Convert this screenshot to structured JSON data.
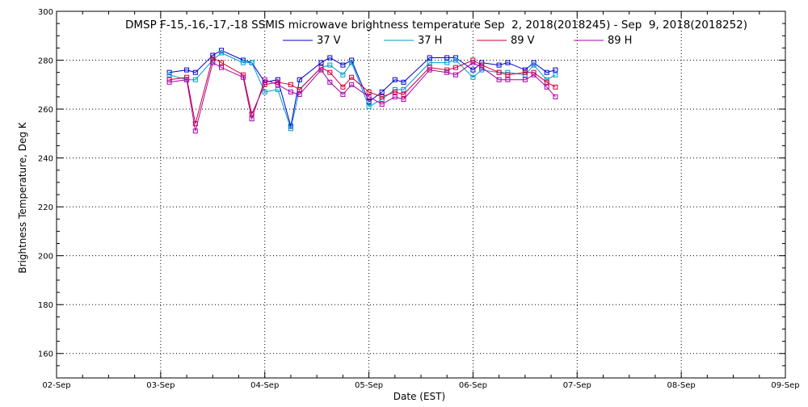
{
  "chart_data": {
    "type": "line",
    "title": "DMSP F-15,-16,-17,-18 SSMIS microwave brightness temperature Sep  2, 2018(2018245) - Sep  9, 2018(2018252)",
    "xlabel": "Date (EST)",
    "ylabel": "Brightness Temperature, Deg K",
    "xlim": [
      "2018-09-02",
      "2018-09-09"
    ],
    "ylim": [
      150,
      300
    ],
    "x_ticks": [
      "02-Sep",
      "03-Sep",
      "04-Sep",
      "05-Sep",
      "06-Sep",
      "07-Sep",
      "08-Sep",
      "09-Sep"
    ],
    "y_ticks": [
      160,
      180,
      200,
      220,
      240,
      260,
      280,
      300
    ],
    "grid": true,
    "legend_position": "top-center",
    "series": [
      {
        "name": "37 V",
        "color": "#0000cc",
        "x": [
          "2018-09-03 02:00",
          "2018-09-03 06:00",
          "2018-09-03 08:00",
          "2018-09-03 12:00",
          "2018-09-03 14:00",
          "2018-09-03 19:00",
          "2018-09-03 21:00",
          "2018-09-04 00:00",
          "2018-09-04 03:00",
          "2018-09-04 06:00",
          "2018-09-04 08:00",
          "2018-09-04 13:00",
          "2018-09-04 15:00",
          "2018-09-04 18:00",
          "2018-09-04 20:00",
          "2018-09-05 00:00",
          "2018-09-05 03:00",
          "2018-09-05 06:00",
          "2018-09-05 08:00",
          "2018-09-05 14:00",
          "2018-09-05 18:00",
          "2018-09-05 20:00",
          "2018-09-06 00:00",
          "2018-09-06 02:00",
          "2018-09-06 06:00",
          "2018-09-06 08:00",
          "2018-09-06 12:00",
          "2018-09-06 14:00",
          "2018-09-06 17:00",
          "2018-09-06 19:00"
        ],
        "values": [
          275,
          276,
          275,
          282,
          284,
          280,
          279,
          271,
          272,
          253,
          272,
          279,
          281,
          278,
          280,
          263,
          267,
          272,
          271,
          281,
          281,
          281,
          276,
          279,
          278,
          279,
          276,
          279,
          275,
          276
        ]
      },
      {
        "name": "37 H",
        "color": "#0099cc",
        "x": [
          "2018-09-03 02:00",
          "2018-09-03 06:00",
          "2018-09-03 08:00",
          "2018-09-03 12:00",
          "2018-09-03 14:00",
          "2018-09-03 19:00",
          "2018-09-03 21:00",
          "2018-09-04 00:00",
          "2018-09-04 03:00",
          "2018-09-04 06:00",
          "2018-09-04 08:00",
          "2018-09-04 13:00",
          "2018-09-04 15:00",
          "2018-09-04 18:00",
          "2018-09-04 20:00",
          "2018-09-05 00:00",
          "2018-09-05 03:00",
          "2018-09-05 06:00",
          "2018-09-05 08:00",
          "2018-09-05 14:00",
          "2018-09-05 18:00",
          "2018-09-05 20:00",
          "2018-09-06 00:00",
          "2018-09-06 02:00",
          "2018-09-06 06:00",
          "2018-09-06 08:00",
          "2018-09-06 12:00",
          "2018-09-06 14:00",
          "2018-09-06 17:00",
          "2018-09-06 19:00"
        ],
        "values": [
          274,
          272,
          272,
          280,
          283,
          279,
          279,
          267,
          268,
          252,
          268,
          277,
          278,
          274,
          279,
          261,
          264,
          268,
          268,
          279,
          279,
          280,
          273,
          276,
          275,
          275,
          274,
          278,
          272,
          274
        ]
      },
      {
        "name": "89 V",
        "color": "#cc0033",
        "x": [
          "2018-09-03 02:00",
          "2018-09-03 06:00",
          "2018-09-03 08:00",
          "2018-09-03 12:00",
          "2018-09-03 14:00",
          "2018-09-03 19:00",
          "2018-09-03 21:00",
          "2018-09-04 00:00",
          "2018-09-04 03:00",
          "2018-09-04 06:00",
          "2018-09-04 08:00",
          "2018-09-04 13:00",
          "2018-09-04 15:00",
          "2018-09-04 18:00",
          "2018-09-04 20:00",
          "2018-09-05 00:00",
          "2018-09-05 03:00",
          "2018-09-05 06:00",
          "2018-09-05 08:00",
          "2018-09-05 14:00",
          "2018-09-05 18:00",
          "2018-09-05 20:00",
          "2018-09-06 00:00",
          "2018-09-06 02:00",
          "2018-09-06 06:00",
          "2018-09-06 08:00",
          "2018-09-06 12:00",
          "2018-09-06 14:00",
          "2018-09-06 17:00",
          "2018-09-06 19:00"
        ],
        "values": [
          272,
          273,
          254,
          281,
          279,
          274,
          258,
          270,
          271,
          270,
          268,
          277,
          275,
          269,
          273,
          267,
          265,
          267,
          266,
          277,
          276,
          277,
          280,
          278,
          275,
          274,
          275,
          275,
          271,
          269
        ]
      },
      {
        "name": "89 H",
        "color": "#aa00aa",
        "x": [
          "2018-09-03 02:00",
          "2018-09-03 06:00",
          "2018-09-03 08:00",
          "2018-09-03 12:00",
          "2018-09-03 14:00",
          "2018-09-03 19:00",
          "2018-09-03 21:00",
          "2018-09-04 00:00",
          "2018-09-04 03:00",
          "2018-09-04 06:00",
          "2018-09-04 08:00",
          "2018-09-04 13:00",
          "2018-09-04 15:00",
          "2018-09-04 18:00",
          "2018-09-04 20:00",
          "2018-09-05 00:00",
          "2018-09-05 03:00",
          "2018-09-05 06:00",
          "2018-09-05 08:00",
          "2018-09-05 14:00",
          "2018-09-05 18:00",
          "2018-09-05 20:00",
          "2018-09-06 00:00",
          "2018-09-06 02:00",
          "2018-09-06 06:00",
          "2018-09-06 08:00",
          "2018-09-06 12:00",
          "2018-09-06 14:00",
          "2018-09-06 17:00",
          "2018-09-06 19:00"
        ],
        "values": [
          271,
          272,
          251,
          279,
          277,
          273,
          256,
          272,
          270,
          267,
          266,
          276,
          271,
          266,
          270,
          265,
          262,
          265,
          264,
          276,
          275,
          274,
          279,
          277,
          272,
          272,
          272,
          274,
          269,
          265
        ]
      }
    ]
  }
}
